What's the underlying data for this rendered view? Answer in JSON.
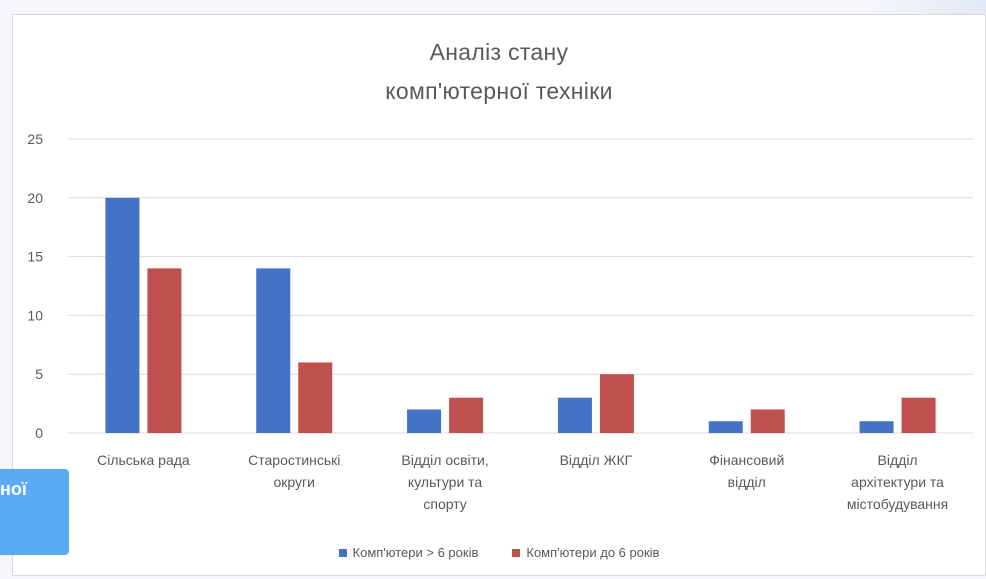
{
  "chart_data": {
    "type": "bar",
    "title_lines": [
      "Аналіз стану",
      "комп'ютерної техніки"
    ],
    "categories": [
      [
        "Сільська рада"
      ],
      [
        "Старостинські",
        "округи"
      ],
      [
        "Відділ освіти,",
        "культури та",
        "спорту"
      ],
      [
        "Відділ ЖКГ"
      ],
      [
        "Фінансовий",
        "відділ"
      ],
      [
        "Відділ",
        "архітектури та",
        "містобудування"
      ]
    ],
    "series": [
      {
        "name": "Комп'ютери  > 6 років",
        "color": "#4472c4",
        "values": [
          20,
          14,
          2,
          3,
          1,
          1
        ]
      },
      {
        "name": "Комп'ютери  до 6 років",
        "color": "#c0504d",
        "values": [
          14,
          6,
          3,
          5,
          2,
          3
        ]
      }
    ],
    "ylim": [
      0,
      25
    ],
    "yticks": [
      "0",
      "5",
      "10",
      "15",
      "20",
      "25"
    ],
    "grid": true,
    "legend_position": "bottom"
  },
  "overlay": {
    "text": "ної",
    "color": "#5aabf6"
  }
}
